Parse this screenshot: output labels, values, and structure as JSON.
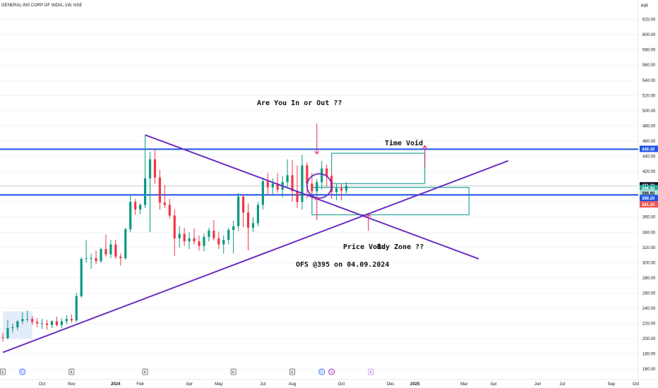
{
  "header": {
    "symbol_title": "GENERAL INS CORP OF INDIA, 1W, NSE",
    "currency": "INR"
  },
  "chart_data": {
    "type": "candlestick",
    "title": "GENERAL INS CORP OF INDIA, 1W, NSE",
    "y_axis": {
      "ylim": [
        150,
        640
      ],
      "ticks": [
        160,
        180,
        200,
        220,
        240,
        260,
        280,
        300,
        320,
        340,
        360,
        380,
        400,
        420,
        440,
        460,
        480,
        500,
        520,
        540,
        560,
        580,
        600,
        620
      ],
      "tick_labels": [
        "160.00",
        "180.00",
        "200.00",
        "220.00",
        "240.00",
        "260.00",
        "280.00",
        "300.00",
        "320.00",
        "340.00",
        "360.00",
        "380.00",
        "400.00",
        "420.00",
        "440.00",
        "460.00",
        "480.00",
        "500.00",
        "520.00",
        "540.00",
        "560.00",
        "580.00",
        "600.00",
        "620.00"
      ]
    },
    "x_axis": {
      "ticks": [
        "Oct",
        "Nov",
        "2024",
        "Feb",
        "Apr",
        "May",
        "Jul",
        "Aug",
        "Oct",
        "Dec",
        "2025",
        "Mar",
        "Apr",
        "Jun",
        "Jul",
        "Sep",
        "Oct"
      ],
      "tick_weeks": [
        8,
        14,
        23,
        28,
        38,
        44,
        53,
        59,
        69,
        79,
        84,
        94,
        100,
        109,
        114,
        124,
        129
      ]
    },
    "event_markers": [
      {
        "week": 0,
        "glyph": "E",
        "kind": "earnings"
      },
      {
        "week": 4,
        "glyph": "D",
        "kind": "dividend"
      },
      {
        "week": 14,
        "glyph": "E",
        "kind": "earnings"
      },
      {
        "week": 29,
        "glyph": "E",
        "kind": "earnings"
      },
      {
        "week": 47,
        "glyph": "E",
        "kind": "earnings"
      },
      {
        "week": 59,
        "glyph": "E",
        "kind": "earnings"
      },
      {
        "week": 65,
        "glyph": "D",
        "kind": "dividend"
      },
      {
        "week": 67,
        "glyph": "S",
        "kind": "split"
      },
      {
        "week": 75,
        "glyph": "E",
        "kind": "earnings-upcoming"
      }
    ],
    "horizontal_lines": [
      {
        "price": 449.3,
        "color": "#1e53e5",
        "label": "449.30"
      },
      {
        "price": 389.2,
        "color": "#1e53e5",
        "label": "389.20"
      }
    ],
    "price_tags": [
      {
        "price": 401.3,
        "label": "401.30",
        "bg": "#131722",
        "fg": "#ffffff"
      },
      {
        "price": 396.5,
        "label": "396.50",
        "bg": "#26a69a",
        "fg": "#ffffff"
      },
      {
        "price": 396.9,
        "label": "396.90",
        "bg": "#b2dfdb",
        "fg": "#131722"
      },
      {
        "price": 389.2,
        "label": "389.20",
        "bg": "#1e53e5",
        "fg": "#ffffff"
      },
      {
        "price": 381.25,
        "label": "381.25",
        "bg": "#ef5350",
        "fg": "#ffffff"
      }
    ],
    "trendlines": [
      {
        "from": {
          "week": 29,
          "price": 468
        },
        "to": {
          "week": 97,
          "price": 305
        },
        "color": "#6a2fc0"
      },
      {
        "from": {
          "week": 0,
          "price": 182
        },
        "to": {
          "week": 103,
          "price": 434
        },
        "color": "#6a2fc0"
      }
    ],
    "rectangles": [
      {
        "from_week": 67,
        "to_week": 86,
        "price_top": 444,
        "price_bottom": 404,
        "color": "#26a69a"
      },
      {
        "from_week": 63,
        "to_week": 95,
        "price_top": 399,
        "price_bottom": 363,
        "color": "#26a69a"
      },
      {
        "from_week": 0,
        "to_week": 6,
        "price_top": 236,
        "price_bottom": 200,
        "color": "#dbe6f7",
        "fill": true
      }
    ],
    "ellipse": {
      "week": 64.5,
      "price": 401,
      "rx_weeks": 2.5,
      "r_price": 16,
      "color": "#6a2fc0"
    },
    "arrows": [
      {
        "x_week": 64,
        "from_price": 483,
        "to_price": 443,
        "color": "#e91e63"
      },
      {
        "x_week": 64,
        "from_price": 356,
        "to_price": 386,
        "color": "#e91e63"
      },
      {
        "x_week": 86,
        "from_price": 425,
        "to_price": 454,
        "color": "#e91e63"
      },
      {
        "x_week": 74.5,
        "from_price": 342,
        "to_price": 364,
        "color": "#e91e63"
      }
    ],
    "candles": [
      {
        "o": 202,
        "h": 208,
        "l": 196,
        "c": 201
      },
      {
        "o": 201,
        "h": 225,
        "l": 199,
        "c": 214
      },
      {
        "o": 214,
        "h": 220,
        "l": 208,
        "c": 215
      },
      {
        "o": 215,
        "h": 224,
        "l": 211,
        "c": 223
      },
      {
        "o": 223,
        "h": 235,
        "l": 219,
        "c": 226
      },
      {
        "o": 226,
        "h": 237,
        "l": 222,
        "c": 226
      },
      {
        "o": 226,
        "h": 230,
        "l": 218,
        "c": 222
      },
      {
        "o": 222,
        "h": 227,
        "l": 215,
        "c": 220
      },
      {
        "o": 220,
        "h": 226,
        "l": 213,
        "c": 220
      },
      {
        "o": 220,
        "h": 225,
        "l": 212,
        "c": 218
      },
      {
        "o": 218,
        "h": 224,
        "l": 214,
        "c": 223
      },
      {
        "o": 223,
        "h": 229,
        "l": 216,
        "c": 218
      },
      {
        "o": 218,
        "h": 227,
        "l": 214,
        "c": 223
      },
      {
        "o": 223,
        "h": 231,
        "l": 219,
        "c": 226
      },
      {
        "o": 226,
        "h": 232,
        "l": 221,
        "c": 224
      },
      {
        "o": 224,
        "h": 260,
        "l": 222,
        "c": 256
      },
      {
        "o": 256,
        "h": 307,
        "l": 254,
        "c": 305
      },
      {
        "o": 305,
        "h": 330,
        "l": 300,
        "c": 306
      },
      {
        "o": 306,
        "h": 312,
        "l": 292,
        "c": 306
      },
      {
        "o": 306,
        "h": 316,
        "l": 298,
        "c": 302
      },
      {
        "o": 302,
        "h": 320,
        "l": 300,
        "c": 318
      },
      {
        "o": 318,
        "h": 337,
        "l": 308,
        "c": 311
      },
      {
        "o": 311,
        "h": 330,
        "l": 306,
        "c": 324
      },
      {
        "o": 324,
        "h": 330,
        "l": 305,
        "c": 308
      },
      {
        "o": 308,
        "h": 312,
        "l": 296,
        "c": 306
      },
      {
        "o": 306,
        "h": 346,
        "l": 304,
        "c": 344
      },
      {
        "o": 344,
        "h": 389,
        "l": 340,
        "c": 380
      },
      {
        "o": 380,
        "h": 384,
        "l": 363,
        "c": 370
      },
      {
        "o": 370,
        "h": 378,
        "l": 364,
        "c": 376
      },
      {
        "o": 376,
        "h": 468,
        "l": 372,
        "c": 411
      },
      {
        "o": 411,
        "h": 446,
        "l": 340,
        "c": 436
      },
      {
        "o": 436,
        "h": 449,
        "l": 404,
        "c": 412
      },
      {
        "o": 412,
        "h": 422,
        "l": 370,
        "c": 379
      },
      {
        "o": 379,
        "h": 402,
        "l": 372,
        "c": 376
      },
      {
        "o": 376,
        "h": 384,
        "l": 358,
        "c": 362
      },
      {
        "o": 362,
        "h": 370,
        "l": 309,
        "c": 332
      },
      {
        "o": 332,
        "h": 348,
        "l": 320,
        "c": 338
      },
      {
        "o": 338,
        "h": 346,
        "l": 322,
        "c": 328
      },
      {
        "o": 328,
        "h": 340,
        "l": 318,
        "c": 332
      },
      {
        "o": 332,
        "h": 345,
        "l": 324,
        "c": 328
      },
      {
        "o": 328,
        "h": 336,
        "l": 316,
        "c": 322
      },
      {
        "o": 322,
        "h": 338,
        "l": 315,
        "c": 334
      },
      {
        "o": 334,
        "h": 346,
        "l": 328,
        "c": 342
      },
      {
        "o": 342,
        "h": 356,
        "l": 329,
        "c": 332
      },
      {
        "o": 332,
        "h": 341,
        "l": 318,
        "c": 324
      },
      {
        "o": 324,
        "h": 336,
        "l": 312,
        "c": 330
      },
      {
        "o": 330,
        "h": 346,
        "l": 324,
        "c": 343
      },
      {
        "o": 343,
        "h": 355,
        "l": 312,
        "c": 348
      },
      {
        "o": 348,
        "h": 392,
        "l": 342,
        "c": 387
      },
      {
        "o": 387,
        "h": 390,
        "l": 347,
        "c": 366
      },
      {
        "o": 366,
        "h": 378,
        "l": 316,
        "c": 346
      },
      {
        "o": 346,
        "h": 360,
        "l": 340,
        "c": 352
      },
      {
        "o": 352,
        "h": 380,
        "l": 348,
        "c": 376
      },
      {
        "o": 376,
        "h": 412,
        "l": 370,
        "c": 407
      },
      {
        "o": 407,
        "h": 418,
        "l": 389,
        "c": 399
      },
      {
        "o": 399,
        "h": 411,
        "l": 390,
        "c": 404
      },
      {
        "o": 404,
        "h": 418,
        "l": 392,
        "c": 396
      },
      {
        "o": 396,
        "h": 414,
        "l": 386,
        "c": 406
      },
      {
        "o": 406,
        "h": 436,
        "l": 398,
        "c": 415
      },
      {
        "o": 415,
        "h": 435,
        "l": 380,
        "c": 394
      },
      {
        "o": 394,
        "h": 428,
        "l": 372,
        "c": 380
      },
      {
        "o": 380,
        "h": 442,
        "l": 370,
        "c": 428
      },
      {
        "o": 428,
        "h": 432,
        "l": 384,
        "c": 404
      },
      {
        "o": 404,
        "h": 418,
        "l": 384,
        "c": 394
      },
      {
        "o": 394,
        "h": 410,
        "l": 386,
        "c": 406
      },
      {
        "o": 406,
        "h": 434,
        "l": 396,
        "c": 424
      },
      {
        "o": 424,
        "h": 429,
        "l": 400,
        "c": 414
      },
      {
        "o": 414,
        "h": 418,
        "l": 384,
        "c": 393
      },
      {
        "o": 393,
        "h": 404,
        "l": 382,
        "c": 398
      },
      {
        "o": 398,
        "h": 404,
        "l": 382,
        "c": 395
      },
      {
        "o": 395,
        "h": 406,
        "l": 391,
        "c": 401
      }
    ]
  },
  "annotations": {
    "question": "Are You In or Out ??",
    "time_void": "Time Void",
    "price_void": "Price Void",
    "buy_zone": "Buy Zone ??",
    "ofs": "OFS @395 on 04.09.2024"
  },
  "colors": {
    "up": "#089981",
    "down": "#f23645",
    "hline": "#1e53e5",
    "trend": "#6a2fc0",
    "box": "#26a69a",
    "arrow": "#e91e63",
    "grid": "#e6e8ec"
  }
}
